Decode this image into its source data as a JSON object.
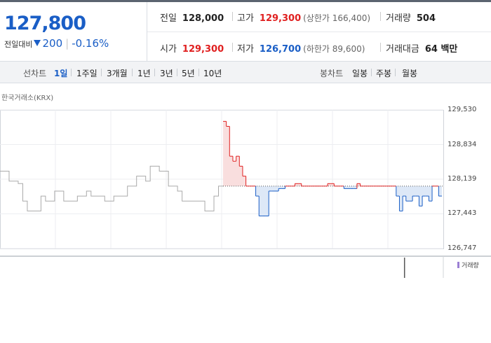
{
  "quote": {
    "price": "127,800",
    "change_label": "전일대비",
    "change_value": "200",
    "change_pct": "-0.16%",
    "prev_close_label": "전일",
    "prev_close": "128,000",
    "high_label": "고가",
    "high": "129,300",
    "upper_limit": "(상한가 166,400)",
    "volume_label": "거래량",
    "volume": "504",
    "open_label": "시가",
    "open": "129,300",
    "low_label": "저가",
    "low": "126,700",
    "lower_limit": "(하한가 89,600)",
    "amount_label": "거래대금",
    "amount": "64 백만"
  },
  "tabs": {
    "line_title": "선차트",
    "line_items": [
      "1일",
      "1주일",
      "3개월",
      "1년",
      "3년",
      "5년",
      "10년"
    ],
    "candle_title": "봉차트",
    "candle_items": [
      "일봉",
      "주봉",
      "월봉"
    ]
  },
  "colors": {
    "up": "#e02020",
    "down": "#1a5ec6",
    "prev": "#aaaaaa",
    "volume": "#9b7fd4"
  },
  "chart_data": {
    "type": "line",
    "source": "한국거래소(KRX)",
    "ylim": [
      126747,
      129530
    ],
    "y_ticks": [
      "129,530",
      "128,834",
      "128,139",
      "127,443",
      "126,747"
    ],
    "y_tick_values": [
      129530,
      128834,
      128139,
      127443,
      126747
    ],
    "baseline": 128000,
    "grid": true,
    "prev_day": [
      128300,
      128300,
      128100,
      128100,
      128050,
      127700,
      127500,
      127500,
      127500,
      127800,
      127700,
      127700,
      127900,
      127900,
      127700,
      127700,
      127700,
      127800,
      127800,
      127900,
      127800,
      127800,
      127800,
      127700,
      127700,
      127800,
      127800,
      127800,
      128000,
      128000,
      128200,
      128200,
      128100,
      128400,
      128400,
      128300,
      128300,
      128000,
      128000,
      127900,
      127700,
      127700,
      127700,
      127700,
      127700,
      127500,
      127500,
      127800,
      128000
    ],
    "today": [
      129300,
      129200,
      128600,
      128500,
      128600,
      128400,
      128200,
      128000,
      128000,
      128000,
      127800,
      127400,
      127400,
      127400,
      127900,
      127900,
      127900,
      127950,
      127950,
      128000,
      128000,
      128000,
      128050,
      128050,
      128000,
      128000,
      128000,
      128000,
      128000,
      128000,
      128000,
      128000,
      128050,
      128050,
      128000,
      128000,
      128000,
      127950,
      127950,
      127950,
      127950,
      128050,
      128000,
      128000,
      128000,
      128000,
      128000,
      128000,
      128000,
      128000,
      128000,
      128000,
      128000,
      127800,
      127500,
      127800,
      127700,
      127700,
      127800,
      127800,
      127600,
      127800,
      127800,
      127700,
      128000,
      128000,
      127800
    ],
    "volume_label": "거래량",
    "volume": [
      0,
      0,
      0,
      0,
      0,
      0,
      0,
      0,
      0,
      0,
      0,
      0,
      0,
      0,
      0,
      0,
      0,
      0,
      0,
      0,
      0,
      0,
      0,
      0,
      0,
      0,
      0,
      0,
      0,
      0,
      0,
      0,
      0,
      0,
      0,
      0,
      0,
      0,
      0,
      0,
      0,
      0,
      0,
      0,
      0,
      0,
      0,
      0,
      0,
      0,
      0,
      0,
      0,
      0,
      0,
      25,
      0,
      0,
      0,
      0,
      0,
      0,
      0,
      0,
      0,
      0,
      0
    ]
  }
}
